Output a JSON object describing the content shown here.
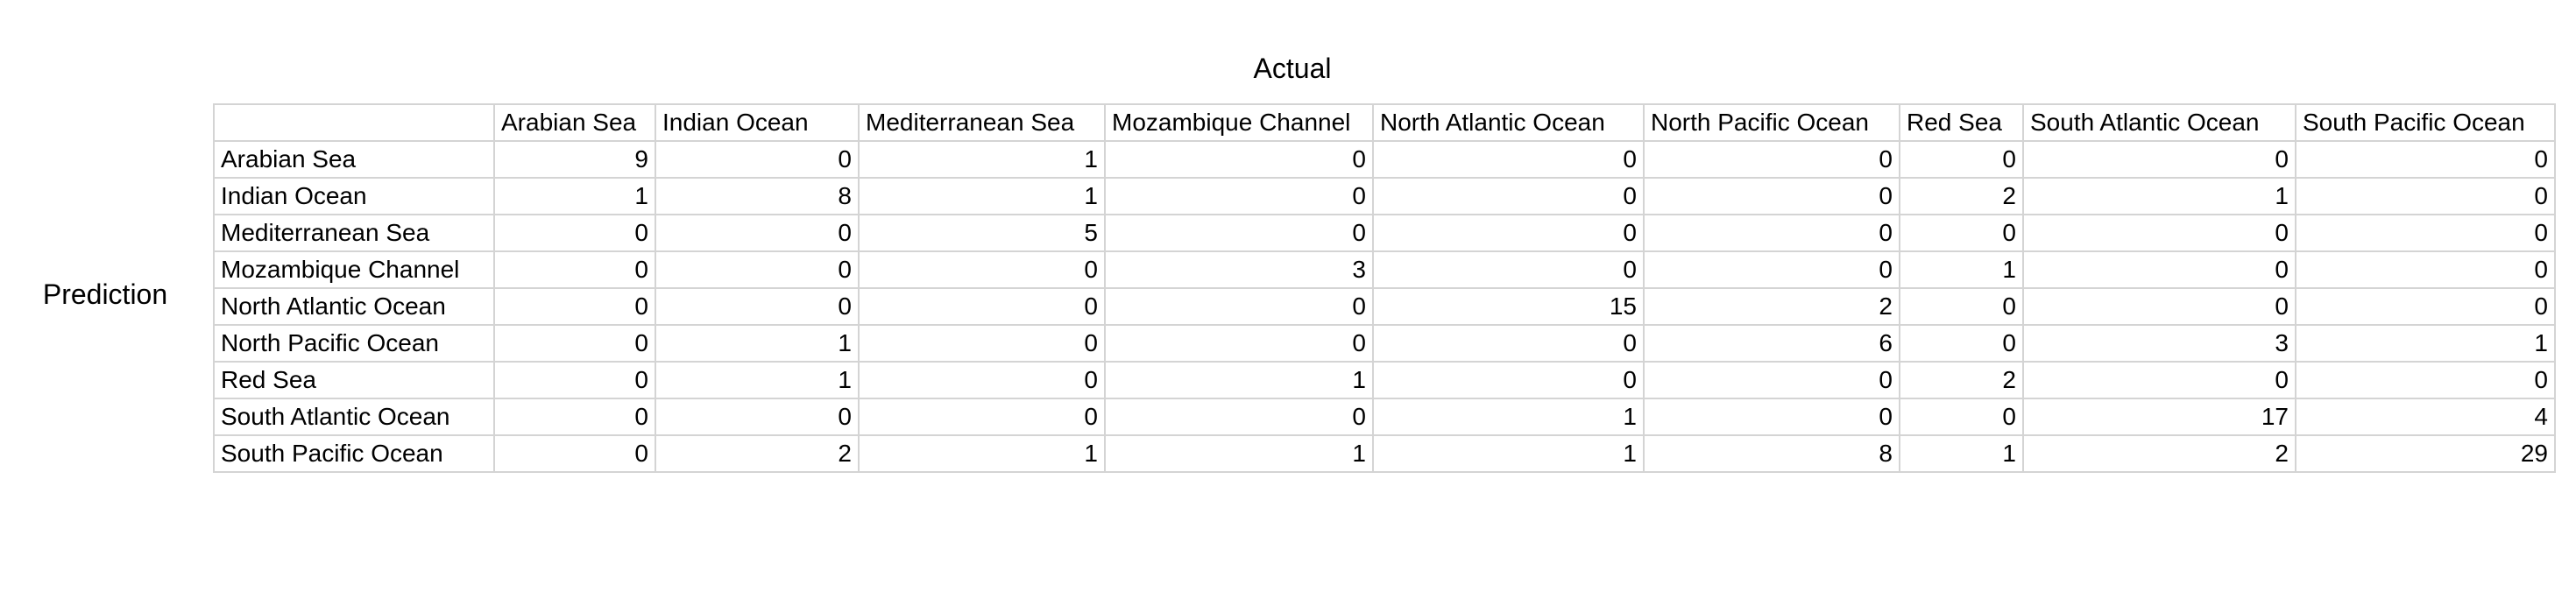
{
  "chart_data": {
    "type": "table",
    "column_axis_label": "Actual",
    "row_axis_label": "Prediction",
    "columns": [
      "Arabian Sea",
      "Indian Ocean",
      "Mediterranean Sea",
      "Mozambique Channel",
      "North Atlantic Ocean",
      "North Pacific Ocean",
      "Red Sea",
      "South Atlantic Ocean",
      "South Pacific Ocean"
    ],
    "rows": [
      {
        "label": "Arabian Sea",
        "values": [
          9,
          0,
          1,
          0,
          0,
          0,
          0,
          0,
          0
        ]
      },
      {
        "label": "Indian Ocean",
        "values": [
          1,
          8,
          1,
          0,
          0,
          0,
          2,
          1,
          0
        ]
      },
      {
        "label": "Mediterranean Sea",
        "values": [
          0,
          0,
          5,
          0,
          0,
          0,
          0,
          0,
          0
        ]
      },
      {
        "label": "Mozambique Channel",
        "values": [
          0,
          0,
          0,
          3,
          0,
          0,
          1,
          0,
          0
        ]
      },
      {
        "label": "North Atlantic Ocean",
        "values": [
          0,
          0,
          0,
          0,
          15,
          2,
          0,
          0,
          0
        ]
      },
      {
        "label": "North Pacific Ocean",
        "values": [
          0,
          1,
          0,
          0,
          0,
          6,
          0,
          3,
          1
        ]
      },
      {
        "label": "Red Sea",
        "values": [
          0,
          1,
          0,
          1,
          0,
          0,
          2,
          0,
          0
        ]
      },
      {
        "label": "South Atlantic Ocean",
        "values": [
          0,
          0,
          0,
          0,
          1,
          0,
          0,
          17,
          4
        ]
      },
      {
        "label": "South Pacific Ocean",
        "values": [
          0,
          2,
          1,
          1,
          1,
          8,
          1,
          2,
          29
        ]
      }
    ]
  }
}
